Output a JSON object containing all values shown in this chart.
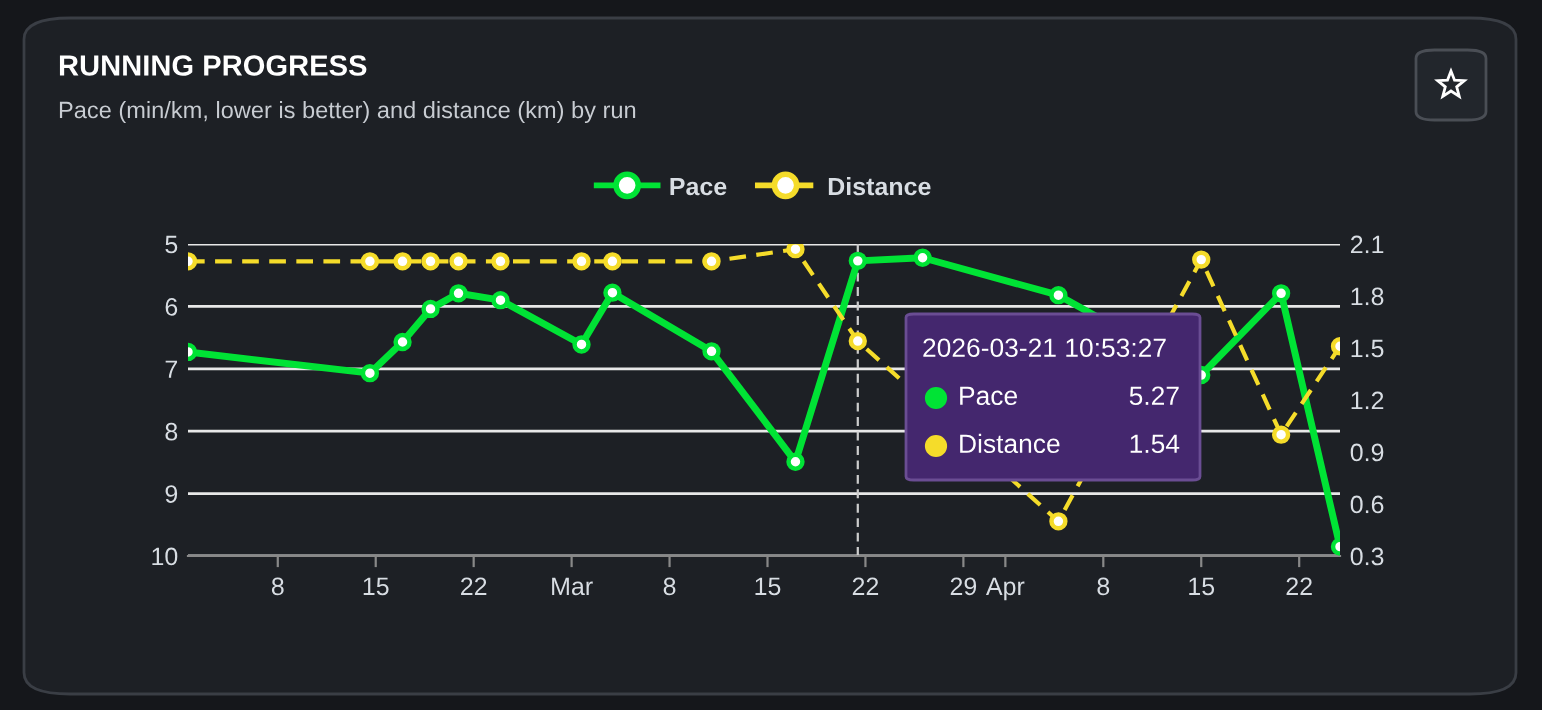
{
  "chart_data": {
    "type": "line",
    "title": "RUNNING PROGRESS",
    "subtitle": "Pace (min/km, lower is better) and distance (km) by run",
    "x": [
      "2026-02-01T14:00",
      "2026-02-14T14:00",
      "2026-02-16T22:00",
      "2026-02-18T22:00",
      "2026-02-20T22:00",
      "2026-02-23T22:00",
      "2026-03-01T17:00",
      "2026-03-03T22:00",
      "2026-03-11",
      "2026-03-17",
      "2026-03-21T10:53",
      "2026-03-26T02:00",
      "2026-04-04T19:00",
      "2026-04-15",
      "2026-04-20T17:00",
      "2026-04-24T22:00"
    ],
    "series": [
      {
        "name": "Pace",
        "color": "#00e335",
        "line_style": "solid",
        "values": [
          6.73,
          7.07,
          6.57,
          6.04,
          5.79,
          5.9,
          6.61,
          5.78,
          6.72,
          8.49,
          5.27,
          5.22,
          5.82,
          7.1,
          5.79,
          9.85
        ]
      },
      {
        "name": "Distance",
        "color": "#f5dc2a",
        "line_style": "dashed",
        "axis": "y2",
        "values": [
          2.0,
          2.0,
          2.0,
          2.0,
          2.0,
          2.0,
          2.0,
          2.0,
          2.0,
          2.07,
          1.54,
          null,
          0.5,
          2.01,
          1.0,
          1.51
        ]
      }
    ],
    "xlim": [
      "2026-02-01T14:00",
      "2026-04-24T22:00"
    ],
    "xticks": [
      {
        "value": "2026-02-08",
        "label": "8"
      },
      {
        "value": "2026-02-15",
        "label": "15"
      },
      {
        "value": "2026-02-22",
        "label": "22"
      },
      {
        "value": "2026-03-01",
        "label": "Mar"
      },
      {
        "value": "2026-03-08",
        "label": "8"
      },
      {
        "value": "2026-03-15",
        "label": "15"
      },
      {
        "value": "2026-03-22",
        "label": "22"
      },
      {
        "value": "2026-03-29",
        "label": "29"
      },
      {
        "value": "2026-04-01",
        "label": "Apr"
      },
      {
        "value": "2026-04-08",
        "label": "8"
      },
      {
        "value": "2026-04-15",
        "label": "15"
      },
      {
        "value": "2026-04-22",
        "label": "22"
      }
    ],
    "ylim": [
      10,
      5
    ],
    "yticks": [
      5,
      6,
      7,
      8,
      9,
      10
    ],
    "y2lim": [
      0.3,
      2.1
    ],
    "y2ticks": [
      0.3,
      0.6,
      0.9,
      1.2,
      1.5,
      1.8,
      2.1
    ],
    "ref_lines": [
      {
        "axis": "x",
        "value": "2026-03-21T10:53",
        "color": "#cccccc",
        "line_style": "dashed"
      }
    ],
    "annotations": [
      "2026-03-21 10:53:27",
      "Pace 5.27",
      "Distance 1.54"
    ],
    "grid": "y",
    "legend": "top",
    "marker": "circle"
  }
}
